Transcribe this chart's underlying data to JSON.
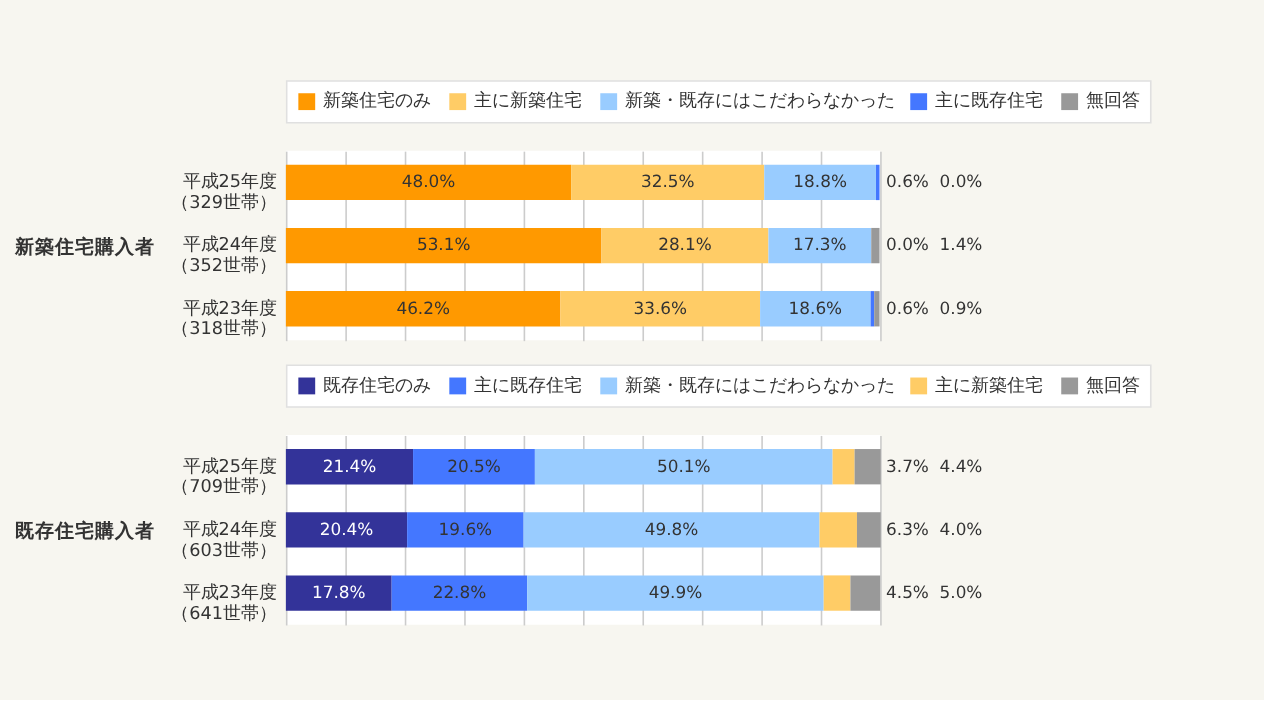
{
  "chart_data": [
    {
      "type": "bar",
      "orientation": "horizontal",
      "stacked": true,
      "ylabel": "新築住宅購入者",
      "legend": "top",
      "grid": "x",
      "tick_labels": "y",
      "xlim": [
        0,
        100
      ],
      "categories": [
        "平成25年度（329世帯）",
        "平成24年度（352世帯）",
        "平成23年度（318世帯）"
      ],
      "series": [
        {
          "name": "新築住宅のみ",
          "color": "#ff9900",
          "values": [
            48.0,
            53.1,
            46.2
          ],
          "value_labels": [
            "48.0%",
            "53.1%",
            "46.2%"
          ]
        },
        {
          "name": "主に新築住宅",
          "color": "#ffcc66",
          "values": [
            32.5,
            28.1,
            33.6
          ],
          "value_labels": [
            "32.5%",
            "28.1%",
            "33.6%"
          ]
        },
        {
          "name": "新築・既存にはこだわらなかった",
          "color": "#99ccff",
          "values": [
            18.8,
            17.3,
            18.6
          ],
          "value_labels": [
            "18.8%",
            "17.3%",
            "18.6%"
          ]
        },
        {
          "name": "主に既存住宅",
          "color": "#4477ff",
          "values": [
            0.6,
            0.0,
            0.6
          ],
          "value_labels": [
            "0.6%",
            "0.0%",
            "0.6%"
          ]
        },
        {
          "name": "無回答",
          "color": "#999999",
          "values": [
            0.0,
            1.4,
            0.9
          ],
          "value_labels": [
            "0.0%",
            "1.4%",
            "0.9%"
          ]
        }
      ]
    },
    {
      "type": "bar",
      "orientation": "horizontal",
      "stacked": true,
      "ylabel": "既存住宅購入者",
      "legend": "top",
      "grid": "x",
      "tick_labels": "y",
      "xlim": [
        0,
        100
      ],
      "categories": [
        "平成25年度（709世帯）",
        "平成24年度（603世帯）",
        "平成23年度（641世帯）"
      ],
      "series": [
        {
          "name": "既存住宅のみ",
          "color": "#333399",
          "values": [
            21.4,
            20.4,
            17.8
          ],
          "value_labels": [
            "21.4%",
            "20.4%",
            "17.8%"
          ]
        },
        {
          "name": "主に既存住宅",
          "color": "#4477ff",
          "values": [
            20.5,
            19.6,
            22.8
          ],
          "value_labels": [
            "20.5%",
            "19.6%",
            "22.8%"
          ]
        },
        {
          "name": "新築・既存にはこだわらなかった",
          "color": "#99ccff",
          "values": [
            50.1,
            49.8,
            49.9
          ],
          "value_labels": [
            "50.1%",
            "49.8%",
            "49.9%"
          ]
        },
        {
          "name": "主に新築住宅",
          "color": "#ffcc66",
          "values": [
            3.7,
            6.3,
            4.5
          ],
          "value_labels": [
            "3.7%",
            "6.3%",
            "4.5%"
          ]
        },
        {
          "name": "無回答",
          "color": "#999999",
          "values": [
            4.4,
            4.0,
            5.0
          ],
          "value_labels": [
            "4.4%",
            "4.0%",
            "5.0%"
          ]
        }
      ]
    }
  ]
}
